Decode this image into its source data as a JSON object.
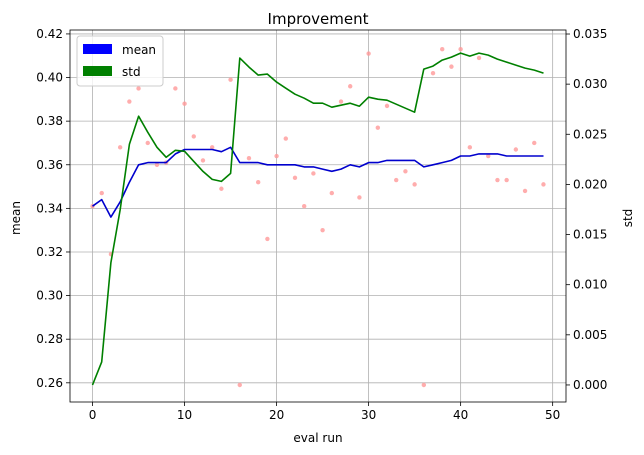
{
  "chart_data": {
    "type": "line",
    "title": "Improvement",
    "xlabel": "eval run",
    "ylabel_left": "mean",
    "ylabel_right": "std",
    "xlim": [
      -2.45,
      51.45
    ],
    "ylim_left": [
      0.2512,
      0.4218
    ],
    "ylim_right": [
      -0.0017,
      0.0354
    ],
    "x_ticks": [
      0,
      10,
      20,
      30,
      40,
      50
    ],
    "y_left_ticks": [
      0.26,
      0.28,
      0.3,
      0.32,
      0.34,
      0.36,
      0.38,
      0.4,
      0.42
    ],
    "y_left_tick_labels": [
      "0.26",
      "0.28",
      "0.30",
      "0.32",
      "0.34",
      "0.36",
      "0.38",
      "0.40",
      "0.42"
    ],
    "y_right_ticks": [
      0.0,
      0.005,
      0.01,
      0.015,
      0.02,
      0.025,
      0.03,
      0.035
    ],
    "y_right_tick_labels": [
      "0.000",
      "0.005",
      "0.010",
      "0.015",
      "0.020",
      "0.025",
      "0.030",
      "0.035"
    ],
    "grid": true,
    "legend_position": "top-left",
    "legend": [
      {
        "label": "mean",
        "color": "#0000ff"
      },
      {
        "label": "std",
        "color": "#008000"
      }
    ],
    "x": [
      0,
      1,
      2,
      3,
      4,
      5,
      6,
      7,
      8,
      9,
      10,
      11,
      12,
      13,
      14,
      15,
      16,
      17,
      18,
      19,
      20,
      21,
      22,
      23,
      24,
      25,
      26,
      27,
      28,
      29,
      30,
      31,
      32,
      33,
      34,
      35,
      36,
      37,
      38,
      39,
      40,
      41,
      42,
      43,
      44,
      45,
      46,
      47,
      48,
      49
    ],
    "series": [
      {
        "name": "mean",
        "axis": "left",
        "color": "#0000cd",
        "values": [
          0.341,
          0.344,
          0.336,
          0.343,
          0.352,
          0.36,
          0.361,
          0.361,
          0.361,
          0.365,
          0.367,
          0.367,
          0.367,
          0.367,
          0.366,
          0.368,
          0.361,
          0.361,
          0.361,
          0.36,
          0.36,
          0.36,
          0.36,
          0.359,
          0.359,
          0.358,
          0.357,
          0.358,
          0.36,
          0.359,
          0.361,
          0.361,
          0.362,
          0.362,
          0.362,
          0.362,
          0.359,
          0.36,
          0.361,
          0.362,
          0.364,
          0.364,
          0.365,
          0.365,
          0.365,
          0.364,
          0.364,
          0.364,
          0.364,
          0.364
        ]
      },
      {
        "name": "std",
        "axis": "right",
        "color": "#008000",
        "values": [
          0.0,
          0.0023,
          0.0122,
          0.0175,
          0.024,
          0.0268,
          0.0252,
          0.0237,
          0.0227,
          0.0234,
          0.0233,
          0.0223,
          0.0213,
          0.0205,
          0.0203,
          0.0211,
          0.0326,
          0.0317,
          0.0309,
          0.031,
          0.0302,
          0.0296,
          0.029,
          0.0286,
          0.0281,
          0.0281,
          0.0277,
          0.0279,
          0.0281,
          0.0278,
          0.0287,
          0.0285,
          0.0284,
          0.028,
          0.0276,
          0.0272,
          0.0315,
          0.0318,
          0.0324,
          0.0327,
          0.0331,
          0.0328,
          0.0331,
          0.0329,
          0.0325,
          0.0322,
          0.0319,
          0.0316,
          0.0314,
          0.0311
        ]
      },
      {
        "name": "",
        "type": "scatter",
        "axis": "left",
        "color": "#ff9999",
        "values": [
          0.341,
          0.347,
          0.319,
          0.368,
          0.389,
          0.395,
          0.37,
          0.36,
          0.361,
          0.395,
          0.388,
          0.373,
          0.362,
          0.368,
          0.349,
          0.399,
          0.259,
          0.363,
          0.352,
          0.326,
          0.364,
          0.372,
          0.354,
          0.341,
          0.356,
          0.33,
          0.347,
          0.389,
          0.396,
          0.345,
          0.411,
          0.377,
          0.387,
          0.353,
          0.357,
          0.351,
          0.259,
          0.402,
          0.413,
          0.405,
          0.413,
          0.368,
          0.409,
          0.364,
          0.353,
          0.353,
          0.367,
          0.348,
          0.37,
          0.351
        ]
      }
    ]
  }
}
